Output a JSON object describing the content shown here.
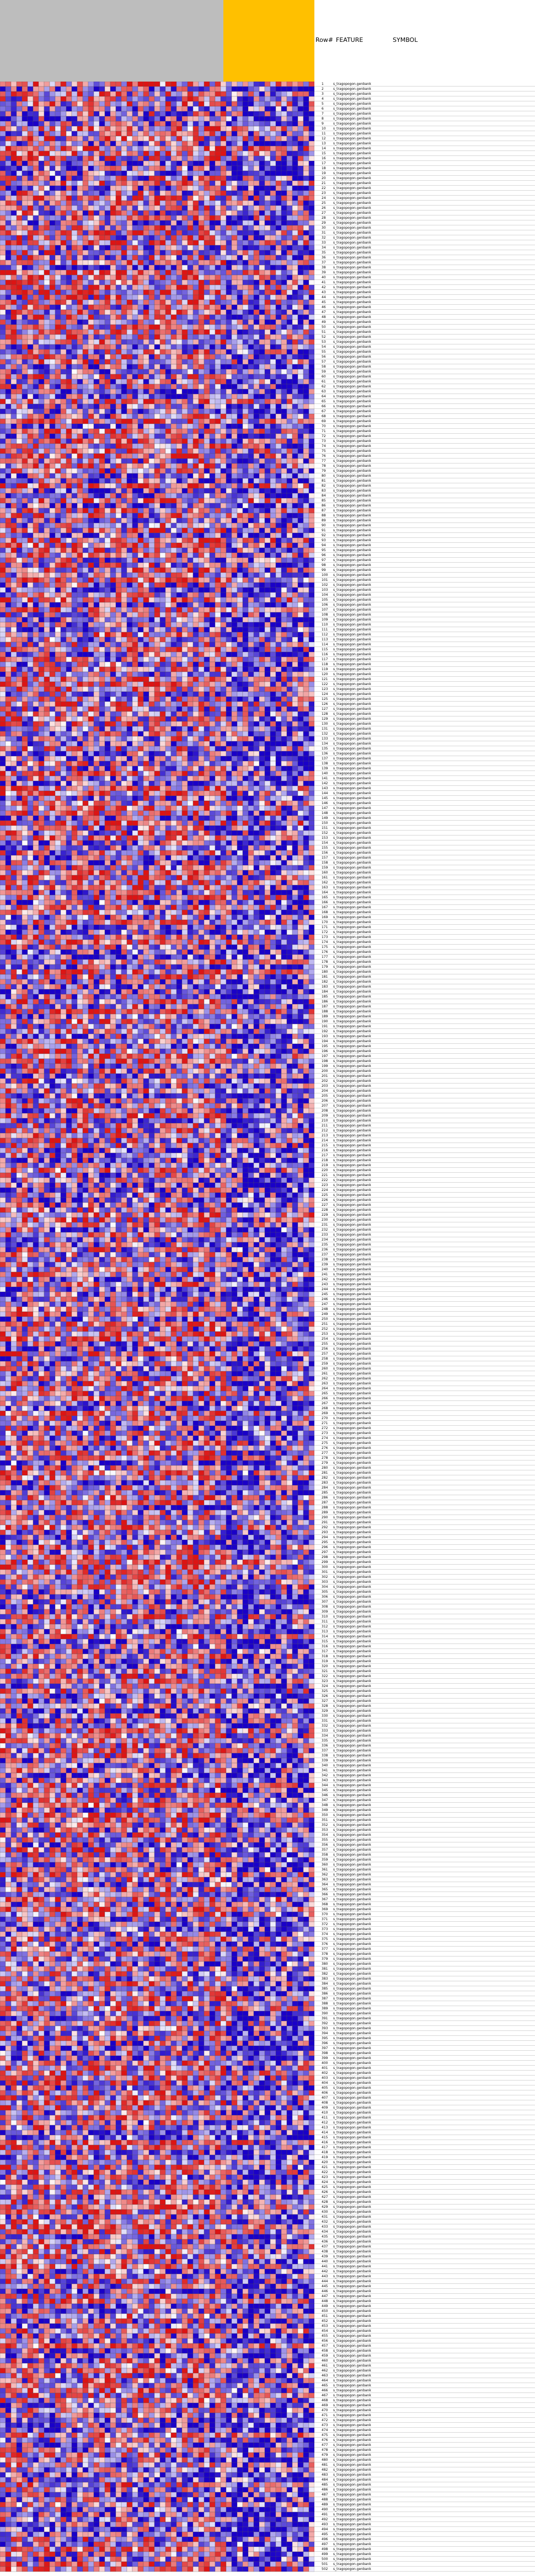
{
  "header": {
    "row_label": "Row#",
    "feature_label": "FEATURE",
    "symbol_label": "SYMBOL"
  },
  "colors": {
    "group_a_header": "#bdbdbd",
    "group_b_header": "#ffc000",
    "low": "#1a00c8",
    "mid": "#ffffff",
    "high": "#dc1414"
  },
  "chart_data": {
    "type": "heatmap",
    "title": "",
    "n_columns": 57,
    "column_groups": [
      {
        "columns": 41,
        "color": "#bdbdbd"
      },
      {
        "columns": 16,
        "color": "#ffc000"
      }
    ],
    "n_rows": 502,
    "row_feature_prefix": "s_tragopogon.genbank",
    "color_scale": {
      "low": "#1a00c8",
      "mid": "#ffffff",
      "high": "#dc1414"
    },
    "grid": true
  }
}
